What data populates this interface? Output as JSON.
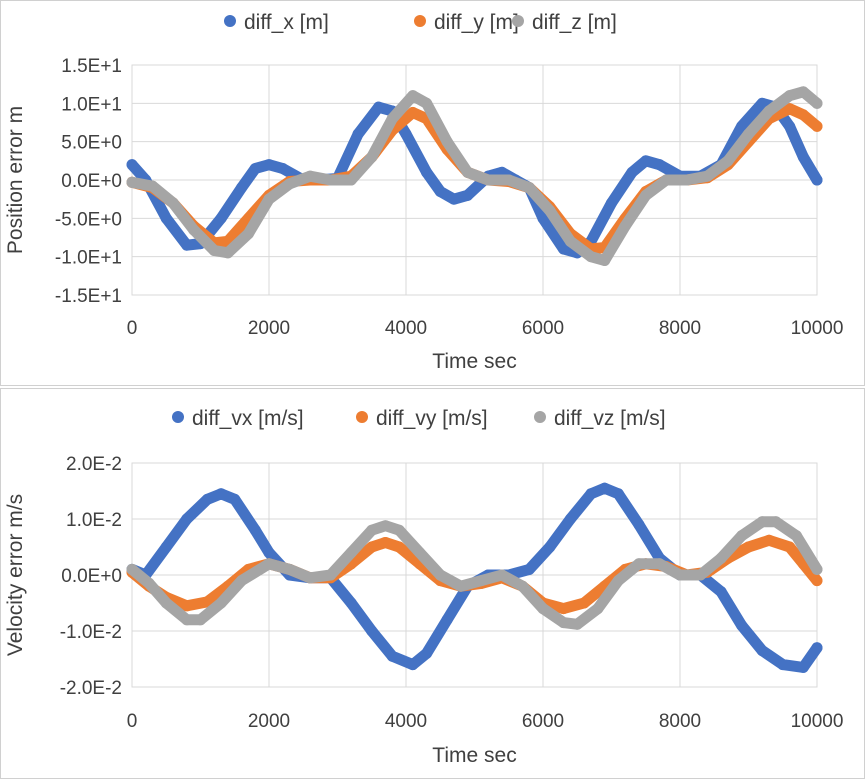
{
  "chart_data": [
    {
      "type": "scatter",
      "title": "",
      "xlabel": "Time sec",
      "ylabel": "Position error m",
      "xlim": [
        0,
        10000
      ],
      "ylim": [
        -15,
        15
      ],
      "xticks": [
        0,
        2000,
        4000,
        6000,
        8000,
        10000
      ],
      "xtick_labels": [
        "0",
        "2000",
        "4000",
        "6000",
        "8000",
        "10000"
      ],
      "yticks": [
        15,
        10,
        5,
        0,
        -5,
        -10,
        -15
      ],
      "ytick_labels": [
        "1.5E+1",
        "1.0E+1",
        "5.0E+0",
        "0.0E+0",
        "-5.0E+0",
        "-1.0E+1",
        "-1.5E+1"
      ],
      "grid": true,
      "legend_position": "top",
      "series": [
        {
          "name": "diff_x [m]",
          "color": "#4472c4",
          "points": [
            [
              0,
              2
            ],
            [
              200,
              0
            ],
            [
              500,
              -5
            ],
            [
              800,
              -8.5
            ],
            [
              1000,
              -8.3
            ],
            [
              1300,
              -5
            ],
            [
              1600,
              -1
            ],
            [
              1800,
              1.5
            ],
            [
              2000,
              2
            ],
            [
              2200,
              1.5
            ],
            [
              2500,
              0
            ],
            [
              2700,
              0
            ],
            [
              3000,
              0.2
            ],
            [
              3300,
              6
            ],
            [
              3600,
              9.5
            ],
            [
              3800,
              9
            ],
            [
              4000,
              6
            ],
            [
              4300,
              1
            ],
            [
              4500,
              -1.5
            ],
            [
              4700,
              -2.5
            ],
            [
              4900,
              -2
            ],
            [
              5200,
              0.5
            ],
            [
              5400,
              1
            ],
            [
              5600,
              0
            ],
            [
              5800,
              -1
            ],
            [
              6000,
              -5
            ],
            [
              6300,
              -9
            ],
            [
              6500,
              -9.5
            ],
            [
              6700,
              -8
            ],
            [
              7000,
              -3
            ],
            [
              7300,
              1
            ],
            [
              7500,
              2.5
            ],
            [
              7700,
              2
            ],
            [
              8000,
              0.5
            ],
            [
              8300,
              0.5
            ],
            [
              8600,
              2
            ],
            [
              8900,
              7
            ],
            [
              9200,
              10
            ],
            [
              9400,
              9.5
            ],
            [
              9600,
              7
            ],
            [
              9800,
              3
            ],
            [
              10000,
              0
            ]
          ]
        },
        {
          "name": "diff_y [m]",
          "color": "#ed7d31",
          "points": [
            [
              0,
              -0.3
            ],
            [
              300,
              -1
            ],
            [
              600,
              -3
            ],
            [
              900,
              -6
            ],
            [
              1200,
              -8.2
            ],
            [
              1400,
              -8
            ],
            [
              1700,
              -5
            ],
            [
              2000,
              -2
            ],
            [
              2300,
              -0.2
            ],
            [
              2600,
              0
            ],
            [
              2900,
              0
            ],
            [
              3200,
              0.5
            ],
            [
              3500,
              3
            ],
            [
              3800,
              6.5
            ],
            [
              4100,
              8.8
            ],
            [
              4300,
              8
            ],
            [
              4600,
              4
            ],
            [
              4900,
              1
            ],
            [
              5200,
              0
            ],
            [
              5500,
              -0.2
            ],
            [
              5800,
              -1
            ],
            [
              6100,
              -3.5
            ],
            [
              6400,
              -7
            ],
            [
              6700,
              -9
            ],
            [
              6900,
              -8.8
            ],
            [
              7200,
              -5
            ],
            [
              7500,
              -1.5
            ],
            [
              7800,
              0
            ],
            [
              8100,
              0
            ],
            [
              8400,
              0.3
            ],
            [
              8700,
              2
            ],
            [
              9000,
              5
            ],
            [
              9300,
              8
            ],
            [
              9600,
              9.3
            ],
            [
              9800,
              8.5
            ],
            [
              10000,
              7
            ]
          ]
        },
        {
          "name": "diff_z [m]",
          "color": "#a5a5a5",
          "points": [
            [
              0,
              -0.3
            ],
            [
              300,
              -0.8
            ],
            [
              600,
              -3
            ],
            [
              900,
              -6.5
            ],
            [
              1200,
              -9.2
            ],
            [
              1400,
              -9.5
            ],
            [
              1700,
              -7
            ],
            [
              2000,
              -2.5
            ],
            [
              2300,
              -0.5
            ],
            [
              2600,
              0.5
            ],
            [
              2900,
              0
            ],
            [
              3200,
              0
            ],
            [
              3500,
              3
            ],
            [
              3800,
              8
            ],
            [
              4100,
              11
            ],
            [
              4300,
              10
            ],
            [
              4600,
              5
            ],
            [
              4900,
              1
            ],
            [
              5200,
              0
            ],
            [
              5500,
              0
            ],
            [
              5800,
              -1
            ],
            [
              6100,
              -4
            ],
            [
              6400,
              -8
            ],
            [
              6700,
              -10
            ],
            [
              6900,
              -10.5
            ],
            [
              7200,
              -6
            ],
            [
              7500,
              -2
            ],
            [
              7800,
              0
            ],
            [
              8100,
              0
            ],
            [
              8400,
              0.5
            ],
            [
              8700,
              2.5
            ],
            [
              9000,
              6
            ],
            [
              9300,
              9
            ],
            [
              9600,
              11
            ],
            [
              9800,
              11.5
            ],
            [
              10000,
              10
            ]
          ]
        }
      ]
    },
    {
      "type": "scatter",
      "title": "",
      "xlabel": "Time sec",
      "ylabel": "Velocity error m/s",
      "xlim": [
        0,
        10000
      ],
      "ylim": [
        -0.02,
        0.02
      ],
      "xticks": [
        0,
        2000,
        4000,
        6000,
        8000,
        10000
      ],
      "xtick_labels": [
        "0",
        "2000",
        "4000",
        "6000",
        "8000",
        "10000"
      ],
      "yticks": [
        0.02,
        0.01,
        0,
        -0.01,
        -0.02
      ],
      "ytick_labels": [
        "2.0E-2",
        "1.0E-2",
        "0.0E+0",
        "-1.0E-2",
        "-2.0E-2"
      ],
      "grid": true,
      "legend_position": "top",
      "series": [
        {
          "name": "diff_vx [m/s]",
          "color": "#4472c4",
          "points": [
            [
              0,
              0.001
            ],
            [
              200,
              0
            ],
            [
              500,
              0.005
            ],
            [
              800,
              0.01
            ],
            [
              1100,
              0.0135
            ],
            [
              1300,
              0.0145
            ],
            [
              1500,
              0.0135
            ],
            [
              1800,
              0.008
            ],
            [
              2000,
              0.004
            ],
            [
              2300,
              0
            ],
            [
              2600,
              -0.0005
            ],
            [
              2900,
              -0.0005
            ],
            [
              3200,
              -0.005
            ],
            [
              3500,
              -0.01
            ],
            [
              3800,
              -0.0145
            ],
            [
              4100,
              -0.016
            ],
            [
              4300,
              -0.014
            ],
            [
              4600,
              -0.008
            ],
            [
              4900,
              -0.002
            ],
            [
              5200,
              0
            ],
            [
              5500,
              0
            ],
            [
              5800,
              0.001
            ],
            [
              6100,
              0.005
            ],
            [
              6400,
              0.01
            ],
            [
              6700,
              0.0145
            ],
            [
              6900,
              0.0155
            ],
            [
              7100,
              0.0145
            ],
            [
              7400,
              0.009
            ],
            [
              7700,
              0.003
            ],
            [
              8000,
              0
            ],
            [
              8300,
              0
            ],
            [
              8600,
              -0.003
            ],
            [
              8900,
              -0.009
            ],
            [
              9200,
              -0.0135
            ],
            [
              9500,
              -0.016
            ],
            [
              9800,
              -0.0165
            ],
            [
              10000,
              -0.013
            ]
          ]
        },
        {
          "name": "diff_vy [m/s]",
          "color": "#ed7d31",
          "points": [
            [
              0,
              0.0005
            ],
            [
              250,
              -0.002
            ],
            [
              500,
              -0.004
            ],
            [
              800,
              -0.0055
            ],
            [
              1100,
              -0.0048
            ],
            [
              1400,
              -0.002
            ],
            [
              1700,
              0.001
            ],
            [
              2000,
              0.002
            ],
            [
              2300,
              0.001
            ],
            [
              2600,
              -0.0005
            ],
            [
              2900,
              -0.0005
            ],
            [
              3200,
              0.002
            ],
            [
              3500,
              0.005
            ],
            [
              3700,
              0.0058
            ],
            [
              3900,
              0.005
            ],
            [
              4200,
              0.002
            ],
            [
              4500,
              -0.001
            ],
            [
              4800,
              -0.002
            ],
            [
              5100,
              -0.0015
            ],
            [
              5400,
              -0.0005
            ],
            [
              5700,
              -0.002
            ],
            [
              6000,
              -0.005
            ],
            [
              6300,
              -0.006
            ],
            [
              6600,
              -0.005
            ],
            [
              6900,
              -0.002
            ],
            [
              7200,
              0.001
            ],
            [
              7500,
              0.002
            ],
            [
              7800,
              0.0015
            ],
            [
              8100,
              0
            ],
            [
              8400,
              0.0005
            ],
            [
              8700,
              0.003
            ],
            [
              9000,
              0.005
            ],
            [
              9300,
              0.0062
            ],
            [
              9600,
              0.005
            ],
            [
              9800,
              0.002
            ],
            [
              10000,
              -0.001
            ]
          ]
        },
        {
          "name": "diff_vz [m/s]",
          "color": "#a5a5a5",
          "points": [
            [
              0,
              0.001
            ],
            [
              250,
              -0.0015
            ],
            [
              500,
              -0.005
            ],
            [
              800,
              -0.008
            ],
            [
              1000,
              -0.008
            ],
            [
              1300,
              -0.005
            ],
            [
              1600,
              -0.001
            ],
            [
              2000,
              0.002
            ],
            [
              2300,
              0.001
            ],
            [
              2600,
              -0.0005
            ],
            [
              2900,
              0
            ],
            [
              3200,
              0.004
            ],
            [
              3500,
              0.008
            ],
            [
              3700,
              0.0088
            ],
            [
              3900,
              0.008
            ],
            [
              4200,
              0.004
            ],
            [
              4500,
              0
            ],
            [
              4800,
              -0.002
            ],
            [
              5100,
              -0.001
            ],
            [
              5400,
              0
            ],
            [
              5700,
              -0.002
            ],
            [
              6000,
              -0.006
            ],
            [
              6300,
              -0.0085
            ],
            [
              6500,
              -0.0088
            ],
            [
              6800,
              -0.006
            ],
            [
              7100,
              -0.001
            ],
            [
              7400,
              0.002
            ],
            [
              7700,
              0.002
            ],
            [
              8000,
              0
            ],
            [
              8300,
              0
            ],
            [
              8600,
              0.003
            ],
            [
              8900,
              0.007
            ],
            [
              9200,
              0.0095
            ],
            [
              9400,
              0.0095
            ],
            [
              9700,
              0.007
            ],
            [
              10000,
              0.001
            ]
          ]
        }
      ]
    }
  ]
}
